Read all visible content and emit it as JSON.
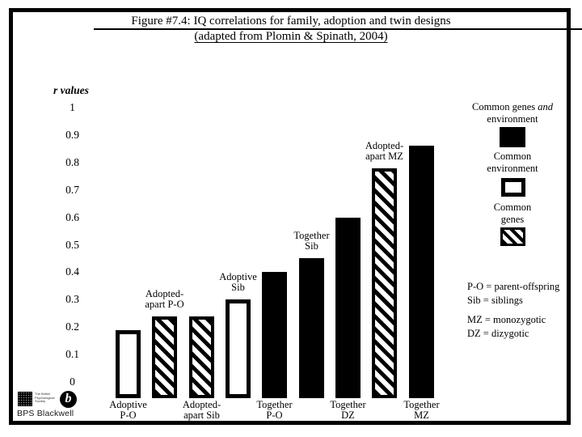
{
  "title": {
    "line1": "Figure #7.4: IQ correlations for family, adoption and twin designs",
    "line2": "(adapted from Plomin & Spinath, 2004)"
  },
  "colors": {
    "foreground": "#000000",
    "background": "#ffffff"
  },
  "chart_data": {
    "type": "bar",
    "title": "Figure #7.4: IQ correlations for family, adoption and twin designs (adapted from Plomin & Spinath, 2004)",
    "ylabel": "r values",
    "xlabel": "",
    "ylim": [
      0,
      1
    ],
    "grid": false,
    "legend_position": "right",
    "yticks": [
      "1",
      "0.9",
      "0.8",
      "0.7",
      "0.6",
      "0.5",
      "0.4",
      "0.3",
      "0.2",
      "0.1",
      "0"
    ],
    "categories": [
      "Adoptive P-O",
      "Adopted-apart P-O",
      "Adopted-apart Sib",
      "Adoptive Sib",
      "Together P-O",
      "Together Sib",
      "Together DZ",
      "Adopted-apart MZ",
      "Together MZ"
    ],
    "values": [
      0.19,
      0.24,
      0.24,
      0.3,
      0.4,
      0.45,
      0.6,
      0.78,
      0.86
    ],
    "styles": [
      "outline",
      "hatch",
      "hatch",
      "outline",
      "solid",
      "solid",
      "solid",
      "hatch",
      "solid"
    ],
    "bar_labels": [
      {
        "position": "below",
        "lines": [
          "Adoptive",
          "P-O"
        ]
      },
      {
        "position": "above",
        "lines": [
          "Adopted-",
          "apart P-O"
        ]
      },
      {
        "position": "below",
        "lines": [
          "Adopted-",
          "apart Sib"
        ]
      },
      {
        "position": "above",
        "lines": [
          "Adoptive",
          "Sib"
        ]
      },
      {
        "position": "below",
        "lines": [
          "Together",
          "P-O"
        ]
      },
      {
        "position": "above",
        "lines": [
          "Together",
          "Sib"
        ]
      },
      {
        "position": "below",
        "lines": [
          "Together",
          "DZ"
        ]
      },
      {
        "position": "above",
        "lines": [
          "Adopted-",
          "apart MZ"
        ]
      },
      {
        "position": "below",
        "lines": [
          "Together",
          "MZ"
        ]
      }
    ],
    "legend": [
      {
        "label": "Common genes and environment",
        "style": "solid"
      },
      {
        "label": "Common environment",
        "style": "outline"
      },
      {
        "label": "Common genes",
        "style": "hatch"
      }
    ]
  },
  "legend_display": {
    "items": [
      {
        "line1a": "Common genes ",
        "line1b": "and",
        "line2": "environment"
      },
      {
        "line1": "Common",
        "line2": "environment"
      },
      {
        "line1": "Common",
        "line2": "genes"
      }
    ]
  },
  "key": {
    "lines": [
      "P-O = parent-offspring",
      "Sib = siblings",
      "MZ = monozygotic",
      "DZ = dizygotic"
    ]
  },
  "logo": {
    "society_text": "The British Psychological Society",
    "blackwell_letter": "b",
    "brand": "BPS Blackwell"
  }
}
